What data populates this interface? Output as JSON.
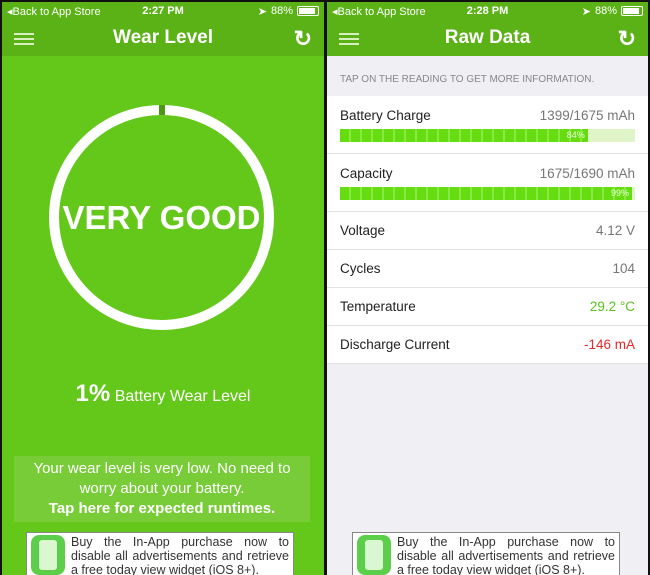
{
  "left": {
    "status": {
      "back": "◂Back to App Store",
      "time": "2:27 PM",
      "battery": "88%",
      "battery_level": 88
    },
    "nav": {
      "title": "Wear Level",
      "menu_icon": "list-icon",
      "refresh_icon": "refresh-icon"
    },
    "gauge": {
      "label": "VERY GOOD",
      "wear_percent": 1
    },
    "wear": {
      "value": "1%",
      "label": "Battery Wear Level"
    },
    "message": {
      "text": "Your wear level is very low. No need to worry about your battery.",
      "link": "Tap here for expected runtimes."
    },
    "ad": {
      "text": "Buy the In-App purchase now to disable all advertisements and retrieve a free today view widget (iOS 8+)."
    }
  },
  "right": {
    "status": {
      "back": "◂Back to App Store",
      "time": "2:28 PM",
      "battery": "88%"
    },
    "nav": {
      "title": "Raw Data"
    },
    "hint": "TAP ON THE READING TO GET MORE INFORMATION.",
    "charge": {
      "label": "Battery Charge",
      "value": "1399/1675 mAh",
      "pct": "84%",
      "fraction": 0.84
    },
    "capacity": {
      "label": "Capacity",
      "value": "1675/1690 mAh",
      "pct": "99%",
      "fraction": 0.99
    },
    "rows": [
      {
        "label": "Voltage",
        "value": "4.12 V",
        "color": "#777777"
      },
      {
        "label": "Cycles",
        "value": "104",
        "color": "#777777"
      },
      {
        "label": "Temperature",
        "value": "29.2 °C",
        "color": "#5cc21e"
      },
      {
        "label": "Discharge Current",
        "value": "-146 mA",
        "color": "#e8282a"
      }
    ],
    "ad": {
      "text": "Buy the In-App purchase now to disable all advertisements and retrieve a free today view widget (iOS 8+)."
    }
  }
}
